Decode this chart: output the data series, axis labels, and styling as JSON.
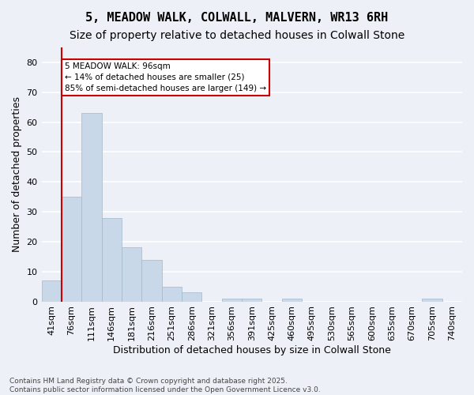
{
  "title1": "5, MEADOW WALK, COLWALL, MALVERN, WR13 6RH",
  "title2": "Size of property relative to detached houses in Colwall Stone",
  "xlabel": "Distribution of detached houses by size in Colwall Stone",
  "ylabel": "Number of detached properties",
  "bar_color": "#c8d8e8",
  "bar_edge_color": "#a0b8cc",
  "bins": [
    "41sqm",
    "76sqm",
    "111sqm",
    "146sqm",
    "181sqm",
    "216sqm",
    "251sqm",
    "286sqm",
    "321sqm",
    "356sqm",
    "391sqm",
    "425sqm",
    "460sqm",
    "495sqm",
    "530sqm",
    "565sqm",
    "600sqm",
    "635sqm",
    "670sqm",
    "705sqm",
    "740sqm"
  ],
  "values": [
    7,
    35,
    63,
    28,
    18,
    14,
    5,
    3,
    0,
    1,
    1,
    0,
    1,
    0,
    0,
    0,
    0,
    0,
    0,
    1,
    0
  ],
  "ylim": [
    0,
    85
  ],
  "yticks": [
    0,
    10,
    20,
    30,
    40,
    50,
    60,
    70,
    80
  ],
  "annotation_text": "5 MEADOW WALK: 96sqm\n← 14% of detached houses are smaller (25)\n85% of semi-detached houses are larger (149) →",
  "vline_x": 0.5,
  "vline_color": "#cc0000",
  "annotation_box_color": "#ffffff",
  "annotation_box_edge": "#cc0000",
  "footnote1": "Contains HM Land Registry data © Crown copyright and database right 2025.",
  "footnote2": "Contains public sector information licensed under the Open Government Licence v3.0.",
  "background_color": "#edf1f7",
  "grid_color": "#ffffff",
  "title_fontsize": 11,
  "subtitle_fontsize": 10,
  "axis_fontsize": 9,
  "tick_fontsize": 8
}
